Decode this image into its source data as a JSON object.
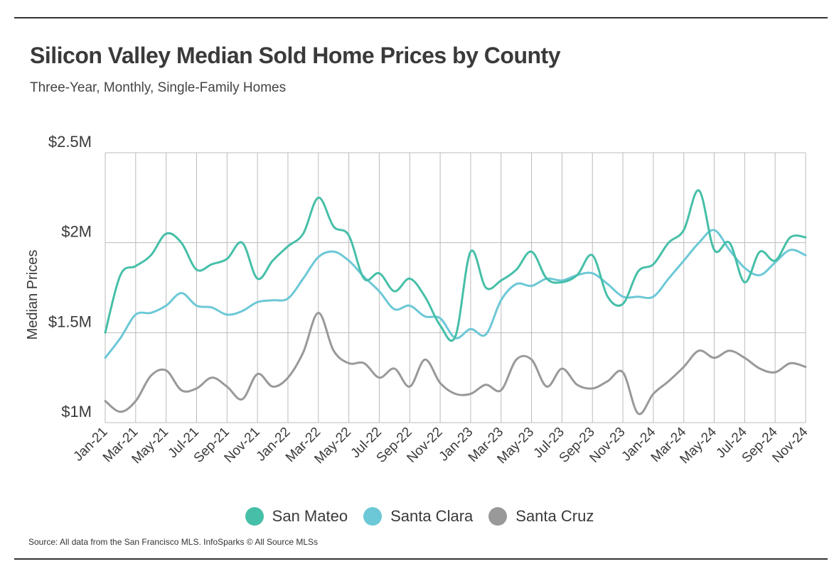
{
  "header": {
    "title": "Silicon Valley Median Sold Home Prices by County",
    "subtitle": "Three-Year, Monthly, Single-Family Homes"
  },
  "footer": {
    "source": "Source:  All data from the San Francisco MLS. InfoSparks © All Source MLSs"
  },
  "colors": {
    "san_mateo": "#46bfa8",
    "santa_clara": "#6cc8d6",
    "santa_cruz": "#999999",
    "grid": "#bbbbbb"
  },
  "chart_data": {
    "type": "line",
    "title": "Silicon Valley Median Sold Home Prices by County",
    "subtitle": "Three-Year, Monthly, Single-Family Homes",
    "ylabel": "Median Prices",
    "xlabel": "",
    "ylim": [
      1.0,
      2.5
    ],
    "yticks": [
      1.0,
      1.5,
      2.0,
      2.5
    ],
    "ytick_labels": [
      "$1M",
      "$1.5M",
      "$2M",
      "$2.5M"
    ],
    "grid": true,
    "legend_position": "bottom",
    "x": [
      "Jan-21",
      "Feb-21",
      "Mar-21",
      "Apr-21",
      "May-21",
      "Jun-21",
      "Jul-21",
      "Aug-21",
      "Sep-21",
      "Oct-21",
      "Nov-21",
      "Dec-21",
      "Jan-22",
      "Feb-22",
      "Mar-22",
      "Apr-22",
      "May-22",
      "Jun-22",
      "Jul-22",
      "Aug-22",
      "Sep-22",
      "Oct-22",
      "Nov-22",
      "Dec-22",
      "Jan-23",
      "Feb-23",
      "Mar-23",
      "Apr-23",
      "May-23",
      "Jun-23",
      "Jul-23",
      "Aug-23",
      "Sep-23",
      "Oct-23",
      "Nov-23",
      "Dec-23",
      "Jan-24",
      "Feb-24",
      "Mar-24",
      "Apr-24",
      "May-24",
      "Jun-24",
      "Jul-24",
      "Aug-24",
      "Sep-24",
      "Oct-24",
      "Nov-24"
    ],
    "x_tick_labels": [
      "Jan-21",
      "Mar-21",
      "May-21",
      "Jul-21",
      "Sep-21",
      "Nov-21",
      "Jan-22",
      "Mar-22",
      "May-22",
      "Jul-22",
      "Sep-22",
      "Nov-22",
      "Jan-23",
      "Mar-23",
      "May-23",
      "Jul-23",
      "Sep-23",
      "Nov-23",
      "Jan-24",
      "Mar-24",
      "May-24",
      "Jul-24",
      "Sep-24",
      "Nov-24"
    ],
    "series": [
      {
        "name": "San Mateo",
        "color": "#46bfa8",
        "values": [
          1.5,
          1.82,
          1.87,
          1.93,
          2.05,
          2.0,
          1.85,
          1.88,
          1.91,
          2.0,
          1.8,
          1.9,
          1.98,
          2.05,
          2.25,
          2.09,
          2.04,
          1.8,
          1.83,
          1.73,
          1.8,
          1.7,
          1.54,
          1.48,
          1.95,
          1.75,
          1.79,
          1.85,
          1.95,
          1.8,
          1.78,
          1.82,
          1.93,
          1.7,
          1.66,
          1.84,
          1.88,
          2.0,
          2.07,
          2.29,
          1.96,
          2.0,
          1.78,
          1.95,
          1.9,
          2.03,
          2.03
        ]
      },
      {
        "name": "Santa Clara",
        "color": "#6cc8d6",
        "values": [
          1.36,
          1.47,
          1.6,
          1.61,
          1.65,
          1.72,
          1.65,
          1.64,
          1.6,
          1.62,
          1.67,
          1.68,
          1.69,
          1.8,
          1.92,
          1.95,
          1.9,
          1.81,
          1.73,
          1.63,
          1.65,
          1.59,
          1.58,
          1.47,
          1.52,
          1.49,
          1.68,
          1.77,
          1.76,
          1.8,
          1.79,
          1.82,
          1.83,
          1.77,
          1.7,
          1.7,
          1.7,
          1.8,
          1.9,
          2.0,
          2.07,
          1.96,
          1.86,
          1.82,
          1.89,
          1.96,
          1.93
        ]
      },
      {
        "name": "Santa Cruz",
        "color": "#999999",
        "values": [
          1.12,
          1.06,
          1.12,
          1.26,
          1.29,
          1.18,
          1.19,
          1.25,
          1.2,
          1.13,
          1.27,
          1.2,
          1.25,
          1.39,
          1.61,
          1.4,
          1.33,
          1.33,
          1.25,
          1.3,
          1.2,
          1.35,
          1.22,
          1.16,
          1.16,
          1.21,
          1.18,
          1.35,
          1.35,
          1.2,
          1.3,
          1.21,
          1.19,
          1.23,
          1.28,
          1.05,
          1.16,
          1.23,
          1.31,
          1.4,
          1.36,
          1.4,
          1.36,
          1.3,
          1.28,
          1.33,
          1.31
        ]
      }
    ]
  }
}
